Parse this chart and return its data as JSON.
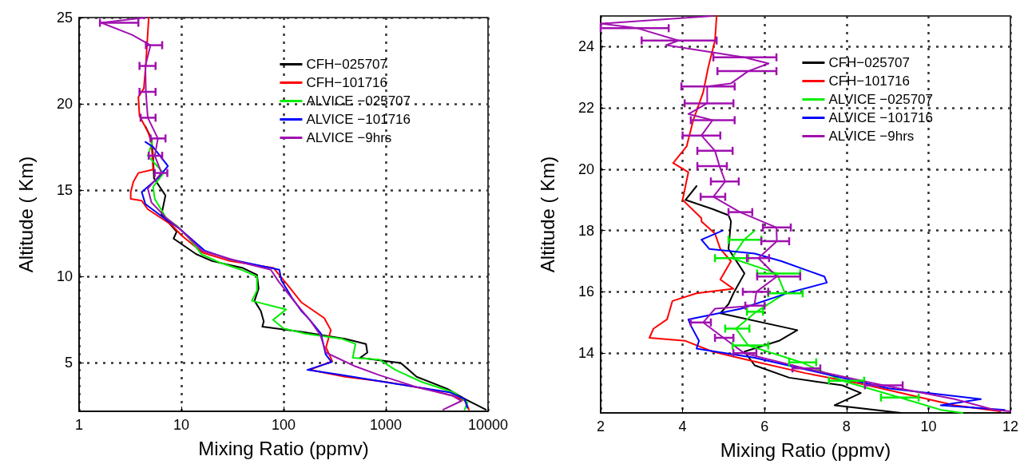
{
  "chart_data": [
    {
      "type": "line",
      "xlabel": "Mixing Ratio (ppmv)",
      "ylabel": "Altitude ( Km)",
      "log": "x",
      "xlim": [
        1,
        10000
      ],
      "xticks": [
        1,
        10,
        100,
        1000,
        10000
      ],
      "ylim": [
        2.2,
        25
      ],
      "yticks": [
        5,
        10,
        15,
        20,
        25
      ],
      "grid": true,
      "legend": "top right",
      "marker": "none",
      "line_style": "solid",
      "series": [
        {
          "name": "CFH−025707",
          "color": "#000000",
          "x": [
            4.45,
            5.1,
            5.3,
            5.4,
            7.0,
            6.4,
            9,
            8.4,
            14,
            20,
            40,
            55,
            57,
            52,
            60,
            64,
            62,
            150,
            400,
            640,
            660,
            560,
            1400,
            2000,
            4000,
            6000,
            9500
          ],
          "values": [
            18.7,
            18,
            16.9,
            15.7,
            14.7,
            13.6,
            12.6,
            12.2,
            11.3,
            10.9,
            10.5,
            10.1,
            9.3,
            8.6,
            8.0,
            7.4,
            7.1,
            6.8,
            6.4,
            6.1,
            5.6,
            5.3,
            5.0,
            4.2,
            3.5,
            2.9,
            2.3
          ]
        },
        {
          "name": "CFH−101716",
          "color": "#ff0000",
          "x": [
            4.8,
            4.5,
            4.3,
            3.8,
            3.9,
            4.7,
            5.1,
            5.3,
            3.8,
            3.4,
            3.2,
            3.2,
            4.1,
            4.7,
            8,
            10,
            16,
            30,
            80,
            110,
            150,
            250,
            290,
            260,
            300,
            180,
            400,
            1000,
            2500,
            4500,
            6000,
            6500
          ],
          "values": [
            25,
            22.3,
            20.9,
            20.4,
            19.3,
            18.4,
            17.8,
            16.2,
            16.0,
            15.5,
            14.9,
            14.5,
            14.4,
            13.9,
            13,
            12.4,
            11.4,
            10.9,
            10.5,
            9.5,
            8.5,
            7.6,
            6.9,
            5.9,
            5.1,
            4.6,
            4.2,
            3.9,
            3.5,
            3.1,
            2.8,
            2.3
          ]
        },
        {
          "name": "ALVICE −025707",
          "color": "#00ee00",
          "x": [
            5.2,
            4.7,
            6.7,
            5.3,
            5.5,
            7.1,
            9.2,
            12,
            15.7,
            24,
            38.5,
            55,
            55,
            49,
            106,
            79,
            100,
            163,
            370,
            505,
            475,
            860,
            1240,
            2250,
            4600,
            6300,
            5900
          ],
          "values": [
            17.8,
            17,
            16,
            15.2,
            14.5,
            13.4,
            12.9,
            12.2,
            11.3,
            10.8,
            10.4,
            10.0,
            9.2,
            8.6,
            8.1,
            7.5,
            7.0,
            6.7,
            6.4,
            6.1,
            5.3,
            5.2,
            4.6,
            3.9,
            3.3,
            2.7,
            2.3
          ]
        },
        {
          "name": "ALVICE −101716",
          "color": "#0000ff",
          "x": [
            4.45,
            5.3,
            7.4,
            5.9,
            4.1,
            4.45,
            7.1,
            9.5,
            17,
            30,
            91,
            95,
            120,
            150,
            180,
            232,
            258,
            295,
            171,
            370,
            1240,
            4200,
            5900,
            6300
          ],
          "values": [
            17.8,
            17.5,
            16.4,
            15.7,
            14.9,
            14.2,
            13.3,
            12.8,
            11.5,
            11.0,
            10.4,
            9.8,
            8.8,
            8.0,
            7.5,
            6.7,
            5.5,
            5.05,
            4.6,
            4.3,
            3.8,
            3.3,
            2.9,
            2.4
          ]
        },
        {
          "name": "ALVICE −9hrs",
          "color": "#a010b0",
          "x": [
            4.45,
            1.65,
            3.3,
            5.0,
            4.45,
            4.5,
            4.7,
            5.9,
            5.5,
            6.4,
            4.7,
            5.1,
            7.1,
            9.5,
            16,
            40,
            75,
            90,
            130,
            180,
            230,
            260,
            505,
            860,
            2000,
            4500,
            5500,
            3650
          ],
          "values": [
            25,
            24.7,
            24.0,
            23.4,
            22.2,
            20.7,
            19.2,
            18,
            17,
            16,
            15.1,
            14.3,
            13.4,
            12.8,
            11.5,
            10.8,
            10.4,
            9.7,
            8.5,
            7.5,
            6.6,
            5.6,
            4.8,
            4.3,
            3.6,
            3.1,
            2.8,
            2.3
          ],
          "xerrors": [
            null,
            [
              1.6,
              3.8
            ],
            null,
            [
              4.5,
              6.5
            ],
            [
              3.9,
              5.6
            ],
            [
              3.9,
              5.6
            ],
            [
              4.0,
              5.6
            ],
            [
              5.0,
              7.0
            ],
            [
              4.8,
              6.5
            ],
            [
              5.5,
              7.3
            ],
            null,
            null,
            null,
            null,
            null,
            null,
            null,
            null,
            null,
            null,
            null,
            null,
            null,
            null,
            null,
            null,
            null,
            null
          ]
        }
      ]
    },
    {
      "type": "line",
      "xlabel": "Mixing Ratio (ppmv)",
      "ylabel": "Altitude ( Km)",
      "xlim": [
        2,
        12
      ],
      "xticks": [
        2,
        4,
        6,
        8,
        10,
        12
      ],
      "ylim": [
        12.05,
        25
      ],
      "yticks": [
        14,
        16,
        18,
        20,
        22,
        24
      ],
      "grid": true,
      "legend": "top right",
      "marker": "none",
      "line_style": "solid",
      "series": [
        {
          "name": "CFH−025707",
          "color": "#000000",
          "x": [
            4.34,
            4.07,
            4.73,
            5.12,
            5.18,
            5.12,
            5.51,
            5.24,
            5.12,
            4.92,
            6.8,
            6.35,
            5.51,
            5.76,
            6.6,
            7.9,
            8.35,
            7.71,
            9.33
          ],
          "values": [
            19.45,
            19.0,
            18.7,
            18.5,
            18.3,
            17.4,
            16.6,
            15.95,
            15.6,
            15.3,
            14.75,
            14.4,
            14.05,
            13.6,
            13.2,
            12.95,
            12.7,
            12.3,
            12.05
          ]
        },
        {
          "name": "CFH−101716",
          "color": "#ff0000",
          "x": [
            4.83,
            4.79,
            4.63,
            4.5,
            4.26,
            4.1,
            3.77,
            4.14,
            4.0,
            4.46,
            4.46,
            4.79,
            4.92,
            5.18,
            4.92,
            5.24,
            4.34,
            3.75,
            3.62,
            3.29,
            3.19,
            4.07,
            4.73,
            5.51,
            6.99,
            8.35,
            9.33,
            10.64,
            11.75
          ],
          "values": [
            25.0,
            24.2,
            23.35,
            22.5,
            21.6,
            20.75,
            20.2,
            19.9,
            19.0,
            18.4,
            18.3,
            17.9,
            17.4,
            17.0,
            16.4,
            16.1,
            15.95,
            15.7,
            15.1,
            14.8,
            14.5,
            14.4,
            14.05,
            13.8,
            13.35,
            13.0,
            12.7,
            12.3,
            12.1
          ]
        },
        {
          "name": "ALVICE −025707",
          "color": "#00ee00",
          "x": [
            5.76,
            5.5,
            5.2,
            6.3,
            6.5,
            5.8,
            5.3,
            5.6,
            6.9,
            7.9,
            9.3,
            10.3,
            10.83
          ],
          "values": [
            18.0,
            17.7,
            17.1,
            16.6,
            15.95,
            15.35,
            14.8,
            14.25,
            13.7,
            13.1,
            12.55,
            12.15,
            12.05
          ],
          "xerrors": [
            null,
            [
              5.12,
              5.92
            ],
            [
              4.79,
              5.6
            ],
            [
              5.82,
              6.87
            ],
            [
              6.09,
              6.93
            ],
            [
              5.57,
              5.96
            ],
            [
              5.04,
              5.63
            ],
            [
              5.22,
              6.09
            ],
            [
              6.6,
              7.26
            ],
            [
              7.57,
              8.43
            ],
            [
              8.84,
              9.76
            ],
            null,
            null
          ]
        },
        {
          "name": "ALVICE −101716",
          "color": "#0000ff",
          "x": [
            4.98,
            4.46,
            4.65,
            5.76,
            6.41,
            7.46,
            7.52,
            6.54,
            5.43,
            4.14,
            4.2,
            4.4,
            4.34,
            5.76,
            7.38,
            9.02,
            11.28,
            10.3,
            11.86
          ],
          "values": [
            18.0,
            17.7,
            17.4,
            17.25,
            17.0,
            16.5,
            16.3,
            15.95,
            15.45,
            15.1,
            14.9,
            14.4,
            14.15,
            13.85,
            13.35,
            12.85,
            12.5,
            12.3,
            12.15
          ]
        },
        {
          "name": "ALVICE −9hrs",
          "color": "#a010b0",
          "x": [
            4.73,
            2.0,
            2.9,
            3.9,
            3.6,
            5.5,
            6.1,
            5.6,
            5.18,
            4.6,
            4.6,
            4.14,
            4.73,
            4.46,
            4.79,
            4.9,
            5.04,
            4.75,
            5.4,
            6.29,
            6.3,
            5.85,
            6.3,
            5.8,
            5.75,
            4.79,
            4.5,
            5.0,
            5.5,
            7.0,
            8.9,
            10.64,
            11.61,
            12
          ],
          "values": [
            25.0,
            24.75,
            24.6,
            24.2,
            24.05,
            23.65,
            23.45,
            23.2,
            22.8,
            22.7,
            22.15,
            21.8,
            21.6,
            21.1,
            20.6,
            20.1,
            19.6,
            19.1,
            18.6,
            18.1,
            17.65,
            17.1,
            16.5,
            16.0,
            15.55,
            15.45,
            15.0,
            14.5,
            14.0,
            13.5,
            12.95,
            12.5,
            12.15,
            12.1
          ],
          "xerrors": [
            null,
            null,
            [
              2.0,
              3.66
            ],
            [
              3.0,
              4.83
            ],
            null,
            [
              4.75,
              6.29
            ],
            null,
            [
              4.85,
              6.29
            ],
            null,
            [
              3.97,
              5.27
            ],
            [
              4.05,
              5.24
            ],
            null,
            [
              4.2,
              5.27
            ],
            [
              4.0,
              4.92
            ],
            [
              4.36,
              5.22
            ],
            [
              4.36,
              5.08
            ],
            [
              4.69,
              5.37
            ],
            [
              4.44,
              5.04
            ],
            [
              5.12,
              5.7
            ],
            [
              5.96,
              6.64
            ],
            [
              5.92,
              6.6
            ],
            [
              5.57,
              6.11
            ],
            [
              5.82,
              6.87
            ],
            [
              5.47,
              6.09
            ],
            [
              5.53,
              6.0
            ],
            null,
            [
              4.2,
              4.69
            ],
            [
              4.79,
              5.24
            ],
            [
              5.24,
              5.8
            ],
            [
              6.68,
              7.36
            ],
            [
              8.45,
              9.37
            ],
            null,
            null,
            null
          ]
        }
      ]
    }
  ]
}
